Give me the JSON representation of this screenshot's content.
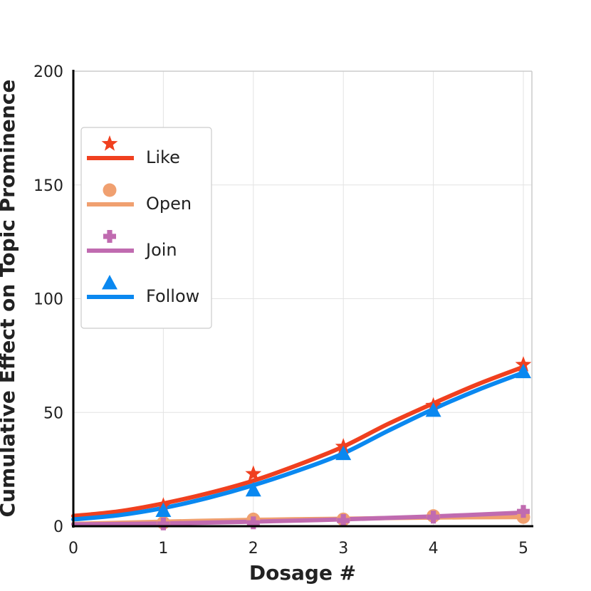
{
  "chart_data": {
    "type": "line",
    "title": "",
    "xlabel": "Dosage #",
    "ylabel": "Cumulative Effect on Topic Prominence",
    "xlim": [
      0,
      5
    ],
    "ylim": [
      0,
      200
    ],
    "xticks": [
      0,
      1,
      2,
      3,
      4,
      5
    ],
    "yticks": [
      0,
      50,
      100,
      150,
      200
    ],
    "xtick_labels": [
      "0",
      "1",
      "2",
      "3",
      "4",
      "5"
    ],
    "ytick_labels": [
      "0",
      "50",
      "100",
      "150",
      "200"
    ],
    "grid": true,
    "legend_position": "upper-left",
    "series": [
      {
        "name": "Like",
        "color": "#f0401f",
        "marker": "star",
        "x": [
          1,
          2,
          3,
          4,
          5
        ],
        "points": [
          9,
          23,
          35,
          53,
          71
        ],
        "curve_x": [
          0,
          0.5,
          1,
          1.5,
          2,
          2.5,
          3,
          3.5,
          4,
          4.5,
          5
        ],
        "curve_y": [
          4.5,
          6.5,
          10,
          14.5,
          20,
          27,
          35,
          45,
          54,
          62.5,
          70
        ]
      },
      {
        "name": "Open",
        "color": "#f0a070",
        "marker": "circle",
        "x": [
          1,
          2,
          3,
          4,
          5
        ],
        "points": [
          1.5,
          3,
          3,
          4.5,
          4
        ],
        "curve_x": [
          0,
          1,
          2,
          3,
          4,
          5
        ],
        "curve_y": [
          1,
          2,
          2.8,
          3.3,
          3.8,
          4
        ]
      },
      {
        "name": "Join",
        "color": "#c06bb0",
        "marker": "plus",
        "x": [
          1,
          2,
          3,
          4,
          5
        ],
        "points": [
          1,
          1.5,
          2.5,
          4,
          6.5
        ],
        "curve_x": [
          0,
          1,
          2,
          3,
          4,
          5
        ],
        "curve_y": [
          0.8,
          1.2,
          2,
          3,
          4.3,
          6
        ]
      },
      {
        "name": "Follow",
        "color": "#0a88f0",
        "marker": "triangle",
        "x": [
          1,
          2,
          3,
          4,
          5
        ],
        "points": [
          7,
          16,
          32,
          51,
          68
        ],
        "curve_x": [
          0,
          0.5,
          1,
          1.5,
          2,
          2.5,
          3,
          3.5,
          4,
          4.5,
          5
        ],
        "curve_y": [
          3,
          4.8,
          8,
          12.5,
          18,
          24.5,
          32,
          42,
          51.5,
          60,
          67.5
        ]
      }
    ]
  }
}
